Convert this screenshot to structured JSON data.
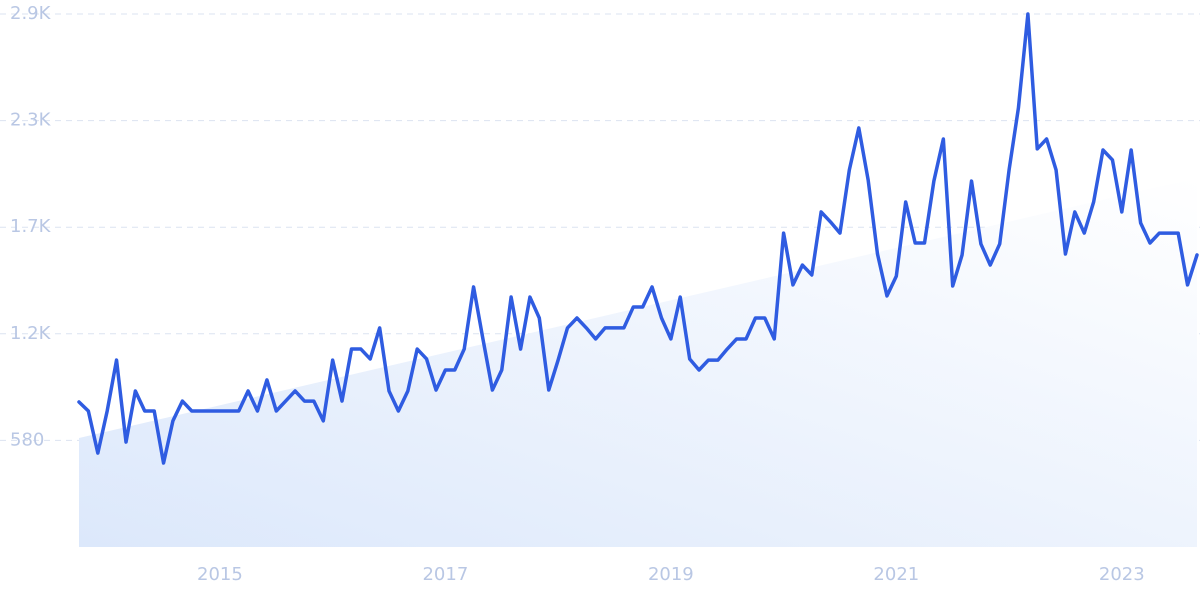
{
  "chart_data": {
    "type": "line",
    "x": [
      2013.75,
      2013.833,
      2013.917,
      2014,
      2014.083,
      2014.167,
      2014.25,
      2014.333,
      2014.417,
      2014.5,
      2014.583,
      2014.667,
      2014.75,
      2014.833,
      2014.917,
      2015,
      2015.083,
      2015.167,
      2015.25,
      2015.333,
      2015.417,
      2015.5,
      2015.583,
      2015.667,
      2015.75,
      2015.833,
      2015.917,
      2016,
      2016.083,
      2016.167,
      2016.25,
      2016.333,
      2016.417,
      2016.5,
      2016.583,
      2016.667,
      2016.75,
      2016.833,
      2016.917,
      2017,
      2017.083,
      2017.167,
      2017.25,
      2017.333,
      2017.417,
      2017.5,
      2017.583,
      2017.667,
      2017.75,
      2017.833,
      2017.917,
      2018,
      2018.083,
      2018.167,
      2018.25,
      2018.333,
      2018.417,
      2018.5,
      2018.583,
      2018.667,
      2018.75,
      2018.833,
      2018.917,
      2019,
      2019.083,
      2019.167,
      2019.25,
      2019.333,
      2019.417,
      2019.5,
      2019.583,
      2019.667,
      2019.75,
      2019.833,
      2019.917,
      2020,
      2020.083,
      2020.167,
      2020.25,
      2020.333,
      2020.417,
      2020.5,
      2020.583,
      2020.667,
      2020.75,
      2020.833,
      2020.917,
      2021,
      2021.083,
      2021.167,
      2021.25,
      2021.333,
      2021.417,
      2021.5,
      2021.583,
      2021.667,
      2021.75,
      2021.833,
      2021.917,
      2022,
      2022.083,
      2022.167,
      2022.25,
      2022.333,
      2022.417,
      2022.5,
      2022.583,
      2022.667,
      2022.75,
      2022.833,
      2022.917,
      2023,
      2023.083,
      2023.167,
      2023.25,
      2023.333,
      2023.417,
      2023.5,
      2023.583,
      2023.667
    ],
    "series": [
      {
        "color": "#2f5ce1",
        "values": [
          789,
          740,
          511,
          740,
          1017,
          571,
          849,
          740,
          740,
          457,
          686,
          794,
          740,
          740,
          740,
          740,
          740,
          740,
          849,
          740,
          909,
          740,
          794,
          849,
          794,
          794,
          686,
          1017,
          794,
          1077,
          1077,
          1023,
          1192,
          849,
          740,
          849,
          1077,
          1023,
          854,
          963,
          963,
          1077,
          1415,
          1132,
          854,
          963,
          1360,
          1077,
          1360,
          1246,
          854,
          1017,
          1192,
          1246,
          1192,
          1132,
          1192,
          1192,
          1192,
          1306,
          1306,
          1415,
          1246,
          1132,
          1360,
          1023,
          963,
          1017,
          1017,
          1077,
          1132,
          1132,
          1246,
          1246,
          1132,
          1708,
          1426,
          1534,
          1480,
          1823,
          1768,
          1708,
          2051,
          2280,
          1997,
          1594,
          1366,
          1474,
          1877,
          1654,
          1654,
          1991,
          2220,
          1420,
          1589,
          1991,
          1649,
          1534,
          1649,
          2051,
          2389,
          2900,
          2166,
          2220,
          2051,
          1594,
          1823,
          1708,
          1877,
          2160,
          2106,
          1823,
          2160,
          1763,
          1654,
          1708,
          1708,
          1708,
          1426,
          1589
        ]
      }
    ],
    "trend": [
      593,
      2008
    ],
    "trend_color": "#dce8fb",
    "xlim": [
      2013.75,
      2023.667
    ],
    "xticks": [
      2015,
      2017,
      2019,
      2021,
      2023
    ],
    "ylim": [
      0,
      2900
    ],
    "yticks": [
      580,
      {
        "value": 1160,
        "label": "1.2K"
      },
      {
        "value": 1740,
        "label": "1.7K"
      },
      {
        "value": 2320,
        "label": "2.3K"
      },
      {
        "value": 2900,
        "label": "2.9K"
      }
    ],
    "grid": true
  }
}
